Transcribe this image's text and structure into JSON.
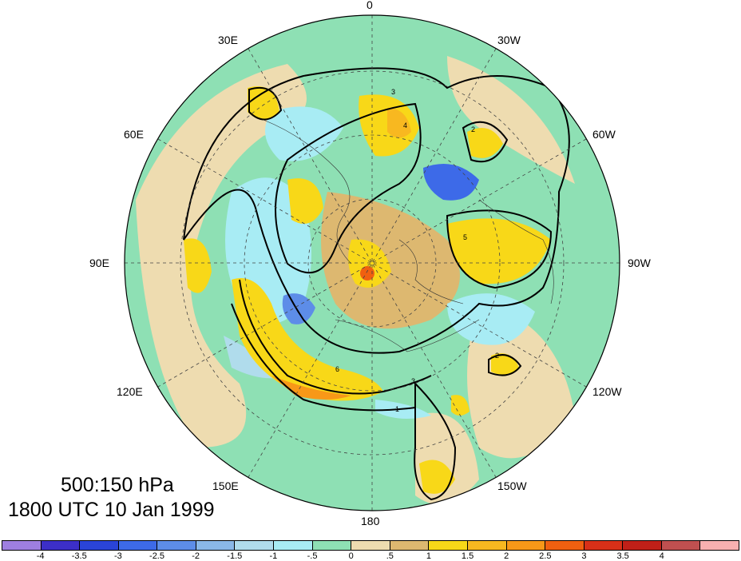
{
  "title": {
    "line1": "500:150 hPa",
    "line2": "1800 UTC 10 Jan 1999"
  },
  "longitude_labels": {
    "lon_0": "0",
    "lon_30w": "30W",
    "lon_60w": "60W",
    "lon_90w": "90W",
    "lon_120w": "120W",
    "lon_150w": "150W",
    "lon_180": "180",
    "lon_150e": "150E",
    "lon_120e": "120E",
    "lon_90e": "90E",
    "lon_60e": "60E",
    "lon_30e": "30E"
  },
  "colorbar": {
    "colors": [
      "#9e7fe0",
      "#3c2fc8",
      "#2a44d8",
      "#3d6ae8",
      "#5d8de8",
      "#8ab8e8",
      "#b0dcec",
      "#a8ecf4",
      "#8ee0b4",
      "#eedcb0",
      "#ddb870",
      "#f8d818",
      "#f8b820",
      "#f89818",
      "#f06010",
      "#d83018",
      "#c02018",
      "#c05050",
      "#f8b0b0"
    ],
    "labels": [
      "-4",
      "-3.5",
      "-3",
      "-2.5",
      "-2",
      "-1.5",
      "-1",
      "-.5",
      "0",
      ".5",
      "1",
      "1.5",
      "2",
      "2.5",
      "3",
      "3.5",
      "4"
    ]
  },
  "contour_labels": [
    "2",
    "3",
    "4",
    "5",
    "6",
    "1"
  ]
}
